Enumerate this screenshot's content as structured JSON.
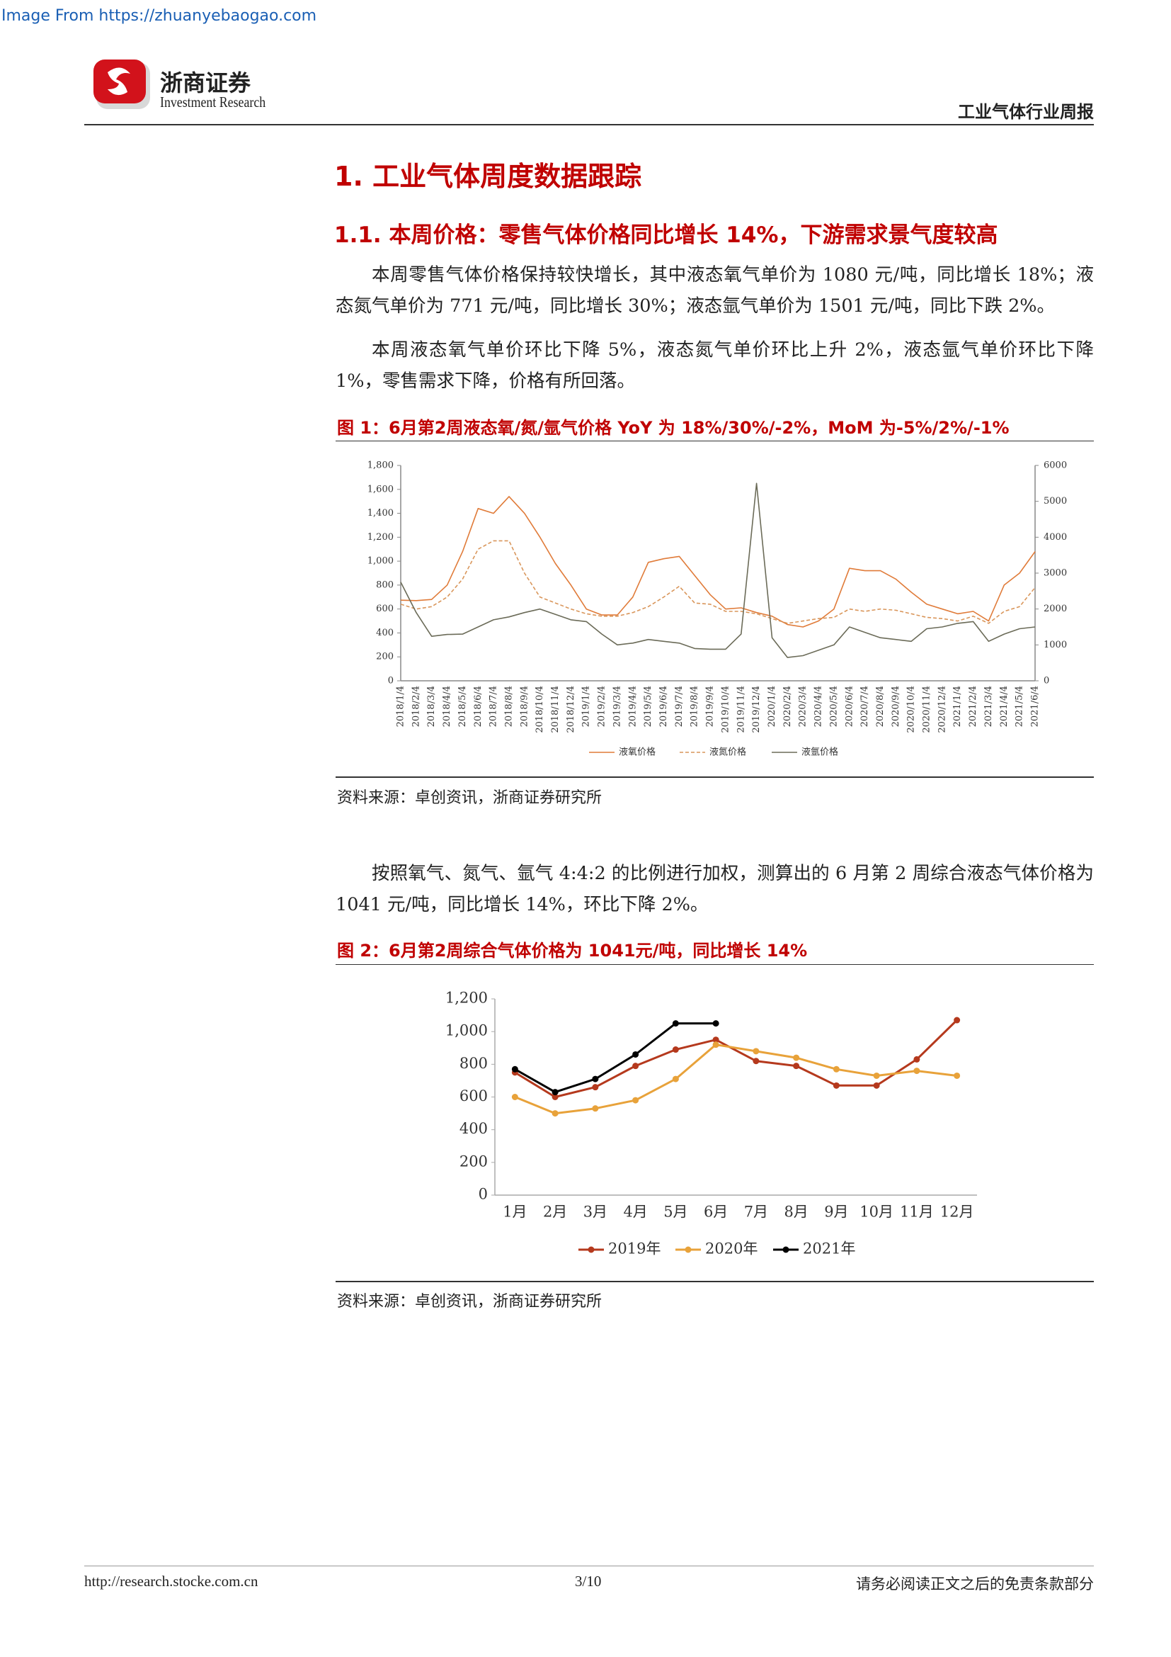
{
  "watermark": "Image From https://zhuanyebaogao.com",
  "header": {
    "brand": "浙商证券",
    "brand_en": "Investment Research",
    "report": "工业气体行业周报"
  },
  "heading1": "1. 工业气体周度数据跟踪",
  "heading2": "1.1. 本周价格：零售气体价格同比增长 14%，下游需求景气度较高",
  "paragraphs": [
    "本周零售气体价格保持较快增长，其中液态氧气单价为 1080 元/吨，同比增长 18%；液态氮气单价为 771 元/吨，同比增长 30%；液态氩气单价为 1501 元/吨，同比下跌 2%。",
    "本周液态氧气单价环比下降 5%，液态氮气单价环比上升 2%，液态氩气单价环比下降 1%，零售需求下降，价格有所回落。",
    "按照氧气、氮气、氩气 4:4:2 的比例进行加权，测算出的 6 月第 2 周综合液态气体价格为 1041 元/吨，同比增长 14%，环比下降 2%。"
  ],
  "figures": [
    {
      "title": "图 1：6月第2周液态氧/氮/氩气价格 YoY 为 18%/30%/-2%，MoM 为-5%/2%/-1%",
      "source": "资料来源：卓创资讯，浙商证券研究所"
    },
    {
      "title": "图 2：6月第2周综合气体价格为 1041元/吨，同比增长 14%",
      "source": "资料来源：卓创资讯，浙商证券研究所"
    }
  ],
  "chart_data": [
    {
      "type": "line",
      "categories": [
        "2018/1/4",
        "2018/2/4",
        "2018/3/4",
        "2018/4/4",
        "2018/5/4",
        "2018/6/4",
        "2018/7/4",
        "2018/8/4",
        "2018/9/4",
        "2018/10/4",
        "2018/11/4",
        "2018/12/4",
        "2019/1/4",
        "2019/2/4",
        "2019/3/4",
        "2019/4/4",
        "2019/5/4",
        "2019/6/4",
        "2019/7/4",
        "2019/8/4",
        "2019/9/4",
        "2019/10/4",
        "2019/11/4",
        "2019/12/4",
        "2020/1/4",
        "2020/2/4",
        "2020/3/4",
        "2020/4/4",
        "2020/5/4",
        "2020/6/4",
        "2020/7/4",
        "2020/8/4",
        "2020/9/4",
        "2020/10/4",
        "2020/11/4",
        "2020/12/4",
        "2021/1/4",
        "2021/2/4",
        "2021/3/4",
        "2021/4/4",
        "2021/5/4",
        "2021/6/4"
      ],
      "series": [
        {
          "name": "液氧价格",
          "color": "#e07b39",
          "style": "solid",
          "values": [
            674,
            670,
            680,
            800,
            1080,
            1440,
            1400,
            1540,
            1400,
            1200,
            980,
            800,
            600,
            550,
            550,
            700,
            990,
            1020,
            1040,
            880,
            720,
            600,
            610,
            570,
            540,
            470,
            450,
            500,
            600,
            940,
            920,
            920,
            850,
            740,
            640,
            600,
            560,
            580,
            500,
            800,
            900,
            1080
          ]
        },
        {
          "name": "液氮价格",
          "color": "#d9965b",
          "style": "dashed",
          "values": [
            640,
            600,
            620,
            700,
            850,
            1100,
            1170,
            1170,
            900,
            700,
            650,
            600,
            560,
            540,
            540,
            570,
            620,
            700,
            790,
            650,
            640,
            580,
            580,
            560,
            520,
            480,
            500,
            520,
            530,
            600,
            580,
            600,
            590,
            560,
            530,
            520,
            500,
            540,
            480,
            580,
            620,
            780
          ]
        },
        {
          "name": "液氩价格",
          "color": "#6b6b58",
          "style": "solid",
          "axis": "y2",
          "values": [
            2750,
            1900,
            1240,
            1290,
            1300,
            1500,
            1700,
            1780,
            1900,
            2000,
            1850,
            1700,
            1650,
            1300,
            1000,
            1050,
            1150,
            1100,
            1050,
            900,
            880,
            880,
            1300,
            5500,
            1200,
            650,
            700,
            850,
            1000,
            1500,
            1350,
            1200,
            1150,
            1100,
            1450,
            1500,
            1600,
            1650,
            1100,
            1300,
            1450,
            1500
          ]
        }
      ],
      "ylim": [
        0,
        1800
      ],
      "yticks": [
        0,
        200,
        400,
        600,
        800,
        {
          "value": 1000,
          "label": "1,000"
        },
        {
          "value": 1200,
          "label": "1,200"
        },
        {
          "value": 1400,
          "label": "1,400"
        },
        {
          "value": 1600,
          "label": "1,600"
        },
        {
          "value": 1800,
          "label": "1,800"
        }
      ],
      "y2lim": [
        0,
        6000
      ],
      "y2ticks": [
        0,
        1000,
        2000,
        3000,
        4000,
        5000,
        6000
      ],
      "legend": "bottom"
    },
    {
      "type": "line",
      "categories": [
        "1月",
        "2月",
        "3月",
        "4月",
        "5月",
        "6月",
        "7月",
        "8月",
        "9月",
        "10月",
        "11月",
        "12月"
      ],
      "series": [
        {
          "name": "2019年",
          "color": "#b5391d",
          "style": "solid",
          "values": [
            750,
            600,
            660,
            790,
            890,
            950,
            820,
            790,
            670,
            670,
            830,
            1070
          ]
        },
        {
          "name": "2020年",
          "color": "#e8a23a",
          "style": "solid",
          "values": [
            600,
            500,
            530,
            580,
            710,
            920,
            880,
            840,
            770,
            730,
            760,
            730
          ]
        },
        {
          "name": "2021年",
          "color": "#000000",
          "style": "solid",
          "values": [
            770,
            630,
            710,
            860,
            1050,
            1050,
            null,
            null,
            null,
            null,
            null,
            null
          ]
        }
      ],
      "ylim": [
        0,
        1200
      ],
      "yticks": [
        0,
        200,
        400,
        600,
        800,
        {
          "value": 1000,
          "label": "1,000"
        },
        {
          "value": 1200,
          "label": "1,200"
        }
      ],
      "markers": true,
      "legend": "bottom"
    }
  ],
  "footer": {
    "url": "http://research.stocke.com.cn",
    "page": "3/10",
    "disclaimer": "请务必阅读正文之后的免责条款部分"
  }
}
